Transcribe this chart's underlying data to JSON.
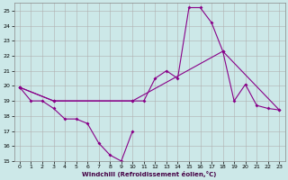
{
  "xlabel": "Windchill (Refroidissement éolien,°C)",
  "bg_color": "#cce8e8",
  "grid_color": "#b0b0b0",
  "line_color": "#880088",
  "xlim": [
    -0.5,
    23.5
  ],
  "ylim": [
    15,
    25.5
  ],
  "yticks": [
    15,
    16,
    17,
    18,
    19,
    20,
    21,
    22,
    23,
    24,
    25
  ],
  "xticks": [
    0,
    1,
    2,
    3,
    4,
    5,
    6,
    7,
    8,
    9,
    10,
    11,
    12,
    13,
    14,
    15,
    16,
    17,
    18,
    19,
    20,
    21,
    22,
    23
  ],
  "line1_x": [
    0,
    1,
    2,
    3,
    4,
    5,
    6,
    7,
    8,
    9,
    10
  ],
  "line1_y": [
    19.9,
    19.0,
    19.0,
    18.5,
    17.8,
    17.8,
    17.5,
    16.2,
    15.4,
    15.0,
    17.0
  ],
  "line2_x": [
    0,
    3,
    10,
    11,
    12,
    13,
    14,
    15,
    16,
    17,
    18,
    19,
    20,
    21,
    22,
    23
  ],
  "line2_y": [
    19.9,
    19.0,
    19.0,
    19.0,
    20.5,
    21.0,
    20.5,
    25.2,
    25.2,
    24.2,
    22.3,
    19.0,
    20.1,
    18.7,
    18.5,
    18.4
  ],
  "line3_x": [
    0,
    3,
    10,
    18,
    23
  ],
  "line3_y": [
    19.9,
    19.0,
    19.0,
    22.3,
    18.4
  ]
}
